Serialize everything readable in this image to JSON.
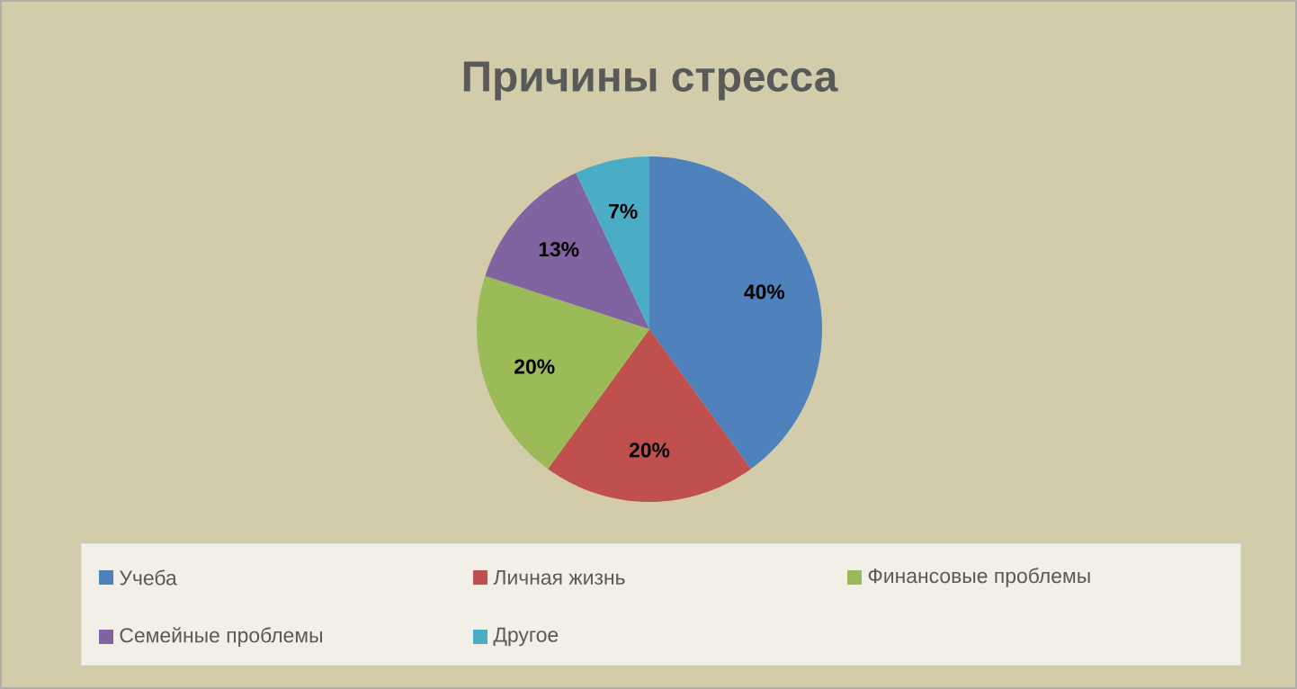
{
  "chart_data": {
    "type": "pie",
    "title": "Причины стресса",
    "categories": [
      "Учеба",
      "Личная жизнь",
      "Финансовые проблемы",
      "Семейные проблемы",
      "Другое"
    ],
    "values": [
      40,
      20,
      20,
      13,
      7
    ],
    "colors": [
      "#4f81bd",
      "#c0504d",
      "#9bbb59",
      "#8064a2",
      "#4bacc6"
    ],
    "value_labels": [
      "40%",
      "20%",
      "20%",
      "13%",
      "7%"
    ],
    "legend": "bottom"
  }
}
